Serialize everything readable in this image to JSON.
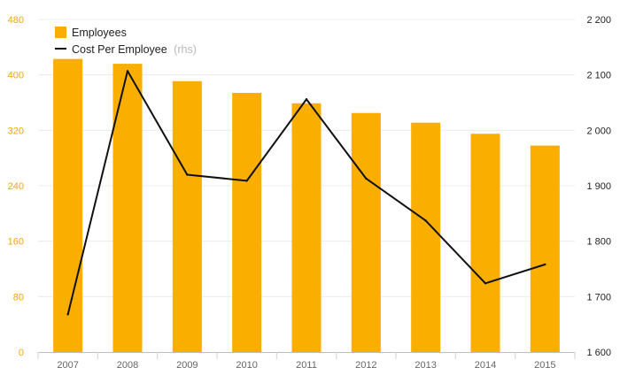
{
  "chart_data": {
    "type": "bar+line",
    "categories": [
      "2007",
      "2008",
      "2009",
      "2010",
      "2011",
      "2012",
      "2013",
      "2014",
      "2015"
    ],
    "series": [
      {
        "name": "Employees",
        "kind": "bar",
        "axis": "left",
        "color": "#f9ae00",
        "values": [
          423,
          416,
          391,
          374,
          359,
          345,
          331,
          315,
          298
        ]
      },
      {
        "name": "Cost Per Employee",
        "name_suffix": "(rhs)",
        "kind": "line",
        "axis": "right",
        "color": "#111111",
        "values": [
          1668,
          2107,
          1920,
          1909,
          2056,
          1913,
          1837,
          1724,
          1758
        ]
      }
    ],
    "yaxis_left": {
      "min": 0,
      "max": 480,
      "ticks": [
        0,
        80,
        160,
        240,
        320,
        400,
        480
      ],
      "tick_labels": [
        "0",
        "80",
        "160",
        "240",
        "320",
        "400",
        "480"
      ],
      "color": "#f5a800"
    },
    "yaxis_right": {
      "min": 1600,
      "max": 2200,
      "ticks": [
        1600,
        1700,
        1800,
        1900,
        2000,
        2100,
        2200
      ],
      "tick_labels": [
        "1 600",
        "1 700",
        "1 800",
        "1 900",
        "2 000",
        "2 100",
        "2 200"
      ]
    },
    "grid": true,
    "legend": {
      "placement": "top-left"
    }
  }
}
